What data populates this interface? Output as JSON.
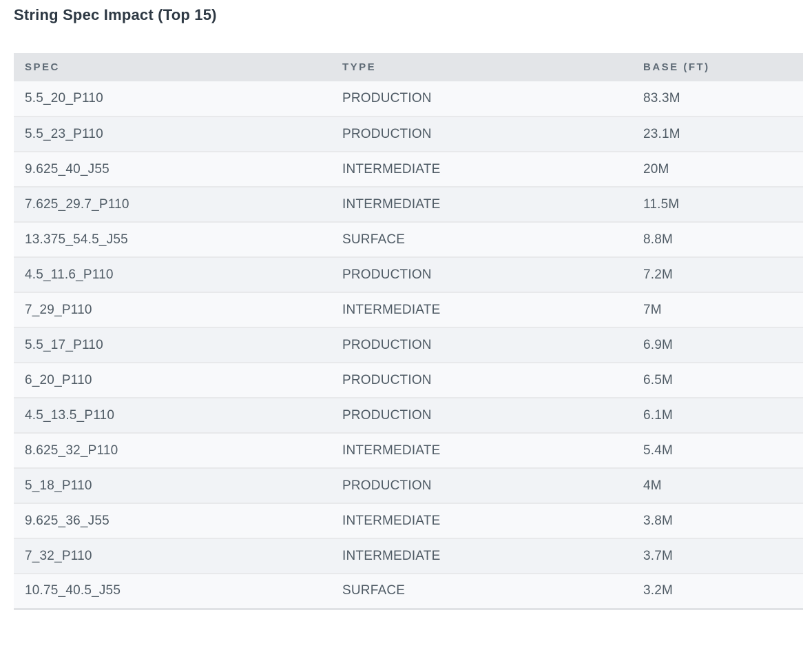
{
  "title": "String Spec Impact (Top 15)",
  "table": {
    "columns": [
      {
        "key": "spec",
        "label": "SPEC"
      },
      {
        "key": "type",
        "label": "TYPE"
      },
      {
        "key": "base",
        "label": "BASE (FT)"
      }
    ],
    "rows": [
      {
        "spec": "5.5_20_P110",
        "type": "PRODUCTION",
        "base": "83.3M"
      },
      {
        "spec": "5.5_23_P110",
        "type": "PRODUCTION",
        "base": "23.1M"
      },
      {
        "spec": "9.625_40_J55",
        "type": "INTERMEDIATE",
        "base": "20M"
      },
      {
        "spec": "7.625_29.7_P110",
        "type": "INTERMEDIATE",
        "base": "11.5M"
      },
      {
        "spec": "13.375_54.5_J55",
        "type": "SURFACE",
        "base": "8.8M"
      },
      {
        "spec": "4.5_11.6_P110",
        "type": "PRODUCTION",
        "base": "7.2M"
      },
      {
        "spec": "7_29_P110",
        "type": "INTERMEDIATE",
        "base": "7M"
      },
      {
        "spec": "5.5_17_P110",
        "type": "PRODUCTION",
        "base": "6.9M"
      },
      {
        "spec": "6_20_P110",
        "type": "PRODUCTION",
        "base": "6.5M"
      },
      {
        "spec": "4.5_13.5_P110",
        "type": "PRODUCTION",
        "base": "6.1M"
      },
      {
        "spec": "8.625_32_P110",
        "type": "INTERMEDIATE",
        "base": "5.4M"
      },
      {
        "spec": "5_18_P110",
        "type": "PRODUCTION",
        "base": "4M"
      },
      {
        "spec": "9.625_36_J55",
        "type": "INTERMEDIATE",
        "base": "3.8M"
      },
      {
        "spec": "7_32_P110",
        "type": "INTERMEDIATE",
        "base": "3.7M"
      },
      {
        "spec": "10.75_40.5_J55",
        "type": "SURFACE",
        "base": "3.2M"
      }
    ]
  },
  "chart_data": {
    "type": "table",
    "title": "String Spec Impact (Top 15)",
    "columns": [
      "SPEC",
      "TYPE",
      "BASE (FT)"
    ],
    "rows": [
      [
        "5.5_20_P110",
        "PRODUCTION",
        "83.3M"
      ],
      [
        "5.5_23_P110",
        "PRODUCTION",
        "23.1M"
      ],
      [
        "9.625_40_J55",
        "INTERMEDIATE",
        "20M"
      ],
      [
        "7.625_29.7_P110",
        "INTERMEDIATE",
        "11.5M"
      ],
      [
        "13.375_54.5_J55",
        "SURFACE",
        "8.8M"
      ],
      [
        "4.5_11.6_P110",
        "PRODUCTION",
        "7.2M"
      ],
      [
        "7_29_P110",
        "INTERMEDIATE",
        "7M"
      ],
      [
        "5.5_17_P110",
        "PRODUCTION",
        "6.9M"
      ],
      [
        "6_20_P110",
        "PRODUCTION",
        "6.5M"
      ],
      [
        "4.5_13.5_P110",
        "PRODUCTION",
        "6.1M"
      ],
      [
        "8.625_32_P110",
        "INTERMEDIATE",
        "5.4M"
      ],
      [
        "5_18_P110",
        "PRODUCTION",
        "4M"
      ],
      [
        "9.625_36_J55",
        "INTERMEDIATE",
        "3.8M"
      ],
      [
        "7_32_P110",
        "INTERMEDIATE",
        "3.7M"
      ],
      [
        "10.75_40.5_J55",
        "SURFACE",
        "3.2M"
      ]
    ],
    "base_values_in_ft": [
      83300000,
      23100000,
      20000000,
      11500000,
      8800000,
      7200000,
      7000000,
      6900000,
      6500000,
      6100000,
      5400000,
      4000000,
      3800000,
      3700000,
      3200000
    ]
  },
  "theme": {
    "title_color": "#2d3843",
    "header_bg": "#e3e5e8",
    "header_text": "#5f6b76",
    "row_odd_bg": "#f8f9fb",
    "row_even_bg": "#f1f3f6",
    "divider": "#e8e9eb",
    "bottom_border": "#e0e2e5",
    "cell_text": "#4f5b65"
  }
}
